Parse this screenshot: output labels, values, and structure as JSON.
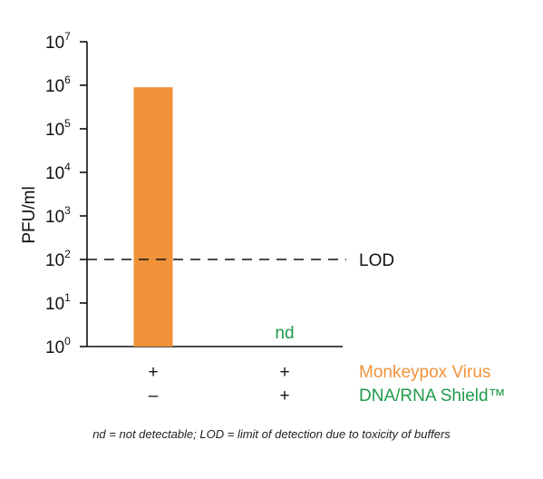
{
  "chart_data": {
    "type": "bar",
    "y_scale": "log",
    "ylim": [
      1,
      10000000
    ],
    "ylabel": "PFU/ml",
    "y_ticks": [
      {
        "value": 1,
        "base": "10",
        "exp": "0"
      },
      {
        "value": 10,
        "base": "10",
        "exp": "1"
      },
      {
        "value": 100,
        "base": "10",
        "exp": "2"
      },
      {
        "value": 1000,
        "base": "10",
        "exp": "3"
      },
      {
        "value": 10000,
        "base": "10",
        "exp": "4"
      },
      {
        "value": 100000,
        "base": "10",
        "exp": "5"
      },
      {
        "value": 1000000,
        "base": "10",
        "exp": "6"
      },
      {
        "value": 10000000,
        "base": "10",
        "exp": "7"
      }
    ],
    "bars": [
      {
        "value": 900000,
        "color": "#f0923a",
        "monkeypox": "+",
        "shield": "–"
      },
      {
        "value": null,
        "label": "nd",
        "monkeypox": "+",
        "shield": "+"
      }
    ],
    "reference_line": {
      "value": 100,
      "label": "LOD",
      "style": "dashed"
    },
    "rows": [
      {
        "name": "Monkeypox Virus",
        "color": "#f0923a"
      },
      {
        "name": "DNA/RNA Shield™",
        "color": "#1f9a4a"
      }
    ],
    "nd_color": "#1f9a4a",
    "grid": false
  },
  "footnote": {
    "nd_abbr": "nd",
    "nd_def": " = not detectable; ",
    "lod_abbr": "LOD",
    "lod_def": " = limit of detection due to toxicity of buffers"
  }
}
